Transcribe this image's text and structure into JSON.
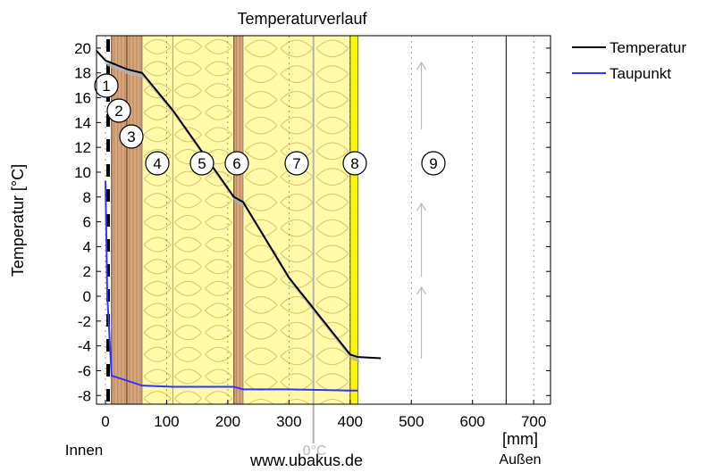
{
  "chart_data": {
    "type": "line",
    "title": "Temperaturverlauf",
    "ylabel": "Temperatur [°C]",
    "xunit": "[mm]",
    "inside_label": "Innen",
    "outside_label": "Außen",
    "zero_line_label": "0°C",
    "watermark": "www.ubakus.de",
    "xlim": [
      -40,
      700
    ],
    "ylim": [
      -8.7,
      21
    ],
    "xticks": [
      0,
      100,
      200,
      300,
      400,
      500,
      600,
      700
    ],
    "yticks": [
      20,
      18,
      16,
      14,
      12,
      10,
      8,
      6,
      4,
      2,
      0,
      -2,
      -4,
      -6,
      -8
    ],
    "layers": [
      {
        "label": "1",
        "x0": 0,
        "x1": 10,
        "material": "plaster",
        "color": "#ffffff"
      },
      {
        "label": "2",
        "x0": 10,
        "x1": 35,
        "material": "wood",
        "color": "#d8a67c"
      },
      {
        "label": "3",
        "x0": 35,
        "x1": 60,
        "material": "wood",
        "color": "#d8a67c"
      },
      {
        "label": "4",
        "x0": 60,
        "x1": 110,
        "material": "insulation",
        "color": "#fff9a8"
      },
      {
        "label": "5",
        "x0": 110,
        "x1": 210,
        "material": "insulation",
        "color": "#fff9a8"
      },
      {
        "label": "6",
        "x0": 210,
        "x1": 225,
        "material": "wood",
        "color": "#d8a67c"
      },
      {
        "label": "7",
        "x0": 225,
        "x1": 400,
        "material": "insulation",
        "color": "#fff9a8"
      },
      {
        "label": "8",
        "x0": 400,
        "x1": 413,
        "material": "board",
        "color": "#fff500"
      },
      {
        "label": "9",
        "x0": 413,
        "x1": 655,
        "material": "air",
        "color": "#ffffff"
      }
    ],
    "zero_line_x": 340,
    "series": [
      {
        "name": "Temperatur",
        "color": "#000000",
        "x": [
          -35,
          -15,
          0,
          10,
          35,
          60,
          110,
          160,
          210,
          225,
          300,
          400,
          413,
          450
        ],
        "y": [
          20,
          19.8,
          19.0,
          18.8,
          18.3,
          18.0,
          15.0,
          11.5,
          8.0,
          7.6,
          1.5,
          -4.7,
          -4.9,
          -5.0
        ]
      },
      {
        "name": "Taupunkt",
        "color": "#3333ff",
        "x": [
          0,
          3,
          10,
          35,
          60,
          110,
          210,
          225,
          300,
          400,
          413
        ],
        "y": [
          9.3,
          0,
          -6.4,
          -6.8,
          -7.2,
          -7.3,
          -7.3,
          -7.5,
          -7.5,
          -7.6,
          -7.6
        ]
      }
    ],
    "legend": {
      "placement": "top-right"
    }
  }
}
